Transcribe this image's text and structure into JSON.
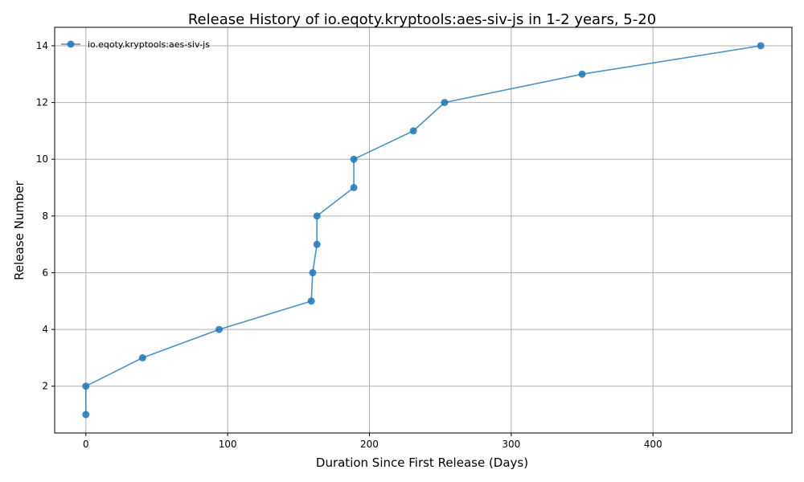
{
  "chart_data": {
    "type": "line",
    "title": "Release History of io.eqoty.kryptools:aes-siv-js in 1-2 years, 5-20",
    "xlabel": "Duration Since First Release (Days)",
    "ylabel": "Release Number",
    "xlim": [
      -22,
      498
    ],
    "ylim": [
      0.35,
      14.65
    ],
    "xticks": [
      0,
      100,
      200,
      300,
      400
    ],
    "yticks": [
      2,
      4,
      6,
      8,
      10,
      12,
      14
    ],
    "grid": true,
    "legend_position": "top-left",
    "series": [
      {
        "name": "io.eqoty.kryptools:aes-siv-js",
        "color": "#1f77b4",
        "x": [
          0,
          0,
          40,
          94,
          159,
          160,
          163,
          163,
          189,
          189,
          231,
          253,
          350,
          476
        ],
        "y": [
          1,
          2,
          3,
          4,
          5,
          6,
          7,
          8,
          9,
          10,
          11,
          12,
          13,
          14
        ]
      }
    ]
  }
}
